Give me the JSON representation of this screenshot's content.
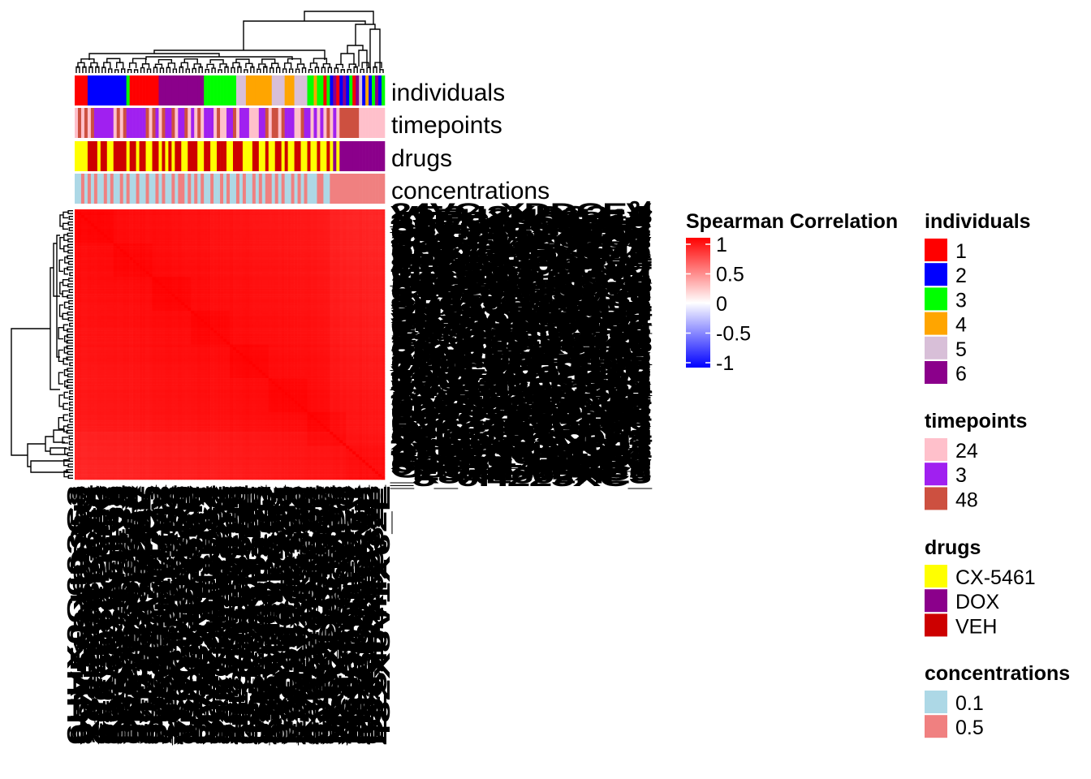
{
  "chart_data": {
    "type": "heatmap",
    "title": "",
    "value_name": "Spearman Correlation",
    "color_scale": {
      "breaks": [
        -1,
        -0.5,
        0,
        0.5,
        1
      ],
      "labels": [
        "1",
        "0.5",
        "0",
        "-0.5",
        "-1"
      ],
      "colors": {
        "low": "#0000ff",
        "mid": "#ffffff",
        "high": "#ff0000"
      }
    },
    "value_range_displayed": [
      0.85,
      1.0
    ],
    "n_samples": 96,
    "row_labels_visible": false,
    "column_labels_visible": false,
    "annotations": [
      {
        "name": "individuals",
        "levels": [
          {
            "label": "1",
            "color": "#ff0000"
          },
          {
            "label": "2",
            "color": "#0000ff"
          },
          {
            "label": "3",
            "color": "#00ff00"
          },
          {
            "label": "4",
            "color": "#ffa500"
          },
          {
            "label": "5",
            "color": "#d8bfd8"
          },
          {
            "label": "6",
            "color": "#8b008b"
          }
        ]
      },
      {
        "name": "timepoints",
        "levels": [
          {
            "label": "24",
            "color": "#ffc0cb"
          },
          {
            "label": "3",
            "color": "#a020f0"
          },
          {
            "label": "48",
            "color": "#cd5040"
          }
        ]
      },
      {
        "name": "drugs",
        "levels": [
          {
            "label": "CX-5461",
            "color": "#ffff00"
          },
          {
            "label": "DOX",
            "color": "#8b008b"
          },
          {
            "label": "VEH",
            "color": "#cd0000"
          }
        ]
      },
      {
        "name": "concentrations",
        "levels": [
          {
            "label": "0.1",
            "color": "#add8e6"
          },
          {
            "label": "0.5",
            "color": "#f08080"
          }
        ]
      }
    ],
    "column_order_annotations": {
      "individuals": [
        1,
        1,
        1,
        1,
        2,
        2,
        2,
        2,
        2,
        2,
        2,
        2,
        2,
        2,
        2,
        2,
        3,
        1,
        1,
        1,
        1,
        1,
        1,
        1,
        1,
        1,
        6,
        6,
        6,
        6,
        6,
        6,
        6,
        6,
        6,
        6,
        6,
        6,
        6,
        6,
        3,
        3,
        3,
        3,
        3,
        3,
        3,
        3,
        3,
        3,
        5,
        5,
        5,
        4,
        4,
        4,
        4,
        4,
        4,
        4,
        4,
        5,
        5,
        5,
        5,
        4,
        4,
        4,
        5,
        5,
        5,
        5,
        3,
        3,
        4,
        3,
        3,
        1,
        3,
        2,
        6,
        1,
        2,
        6,
        2,
        3,
        1,
        6,
        5,
        2,
        4,
        2,
        3,
        6,
        2,
        3
      ],
      "timepoints": [
        1,
        3,
        1,
        3,
        1,
        3,
        2,
        2,
        2,
        2,
        2,
        2,
        1,
        3,
        1,
        3,
        2,
        2,
        2,
        2,
        2,
        2,
        3,
        1,
        3,
        2,
        1,
        3,
        2,
        2,
        3,
        1,
        2,
        2,
        3,
        1,
        2,
        1,
        3,
        1,
        2,
        2,
        2,
        1,
        3,
        1,
        1,
        2,
        2,
        3,
        1,
        2,
        2,
        2,
        1,
        1,
        1,
        2,
        2,
        3,
        1,
        3,
        3,
        1,
        3,
        2,
        2,
        2,
        1,
        1,
        3,
        2,
        2,
        1,
        2,
        1,
        2,
        1,
        3,
        1,
        2,
        1,
        3,
        3,
        3,
        3,
        3,
        3,
        1,
        1,
        1,
        1,
        1,
        1,
        1,
        1
      ],
      "drugs": [
        1,
        1,
        1,
        1,
        3,
        3,
        3,
        1,
        3,
        3,
        1,
        1,
        3,
        3,
        3,
        3,
        1,
        3,
        3,
        1,
        3,
        3,
        1,
        1,
        3,
        3,
        1,
        3,
        1,
        3,
        1,
        3,
        3,
        1,
        1,
        3,
        3,
        3,
        1,
        1,
        3,
        3,
        1,
        1,
        3,
        3,
        3,
        1,
        1,
        3,
        3,
        3,
        1,
        1,
        1,
        3,
        3,
        1,
        1,
        3,
        1,
        1,
        3,
        3,
        1,
        3,
        1,
        1,
        3,
        3,
        1,
        1,
        3,
        1,
        1,
        3,
        1,
        1,
        3,
        1,
        2,
        1,
        2,
        2,
        2,
        2,
        2,
        2,
        2,
        2,
        2,
        2,
        2,
        2,
        2,
        2
      ],
      "concentrations": [
        1,
        1,
        2,
        1,
        2,
        1,
        2,
        1,
        1,
        2,
        1,
        2,
        1,
        1,
        2,
        1,
        2,
        1,
        1,
        2,
        1,
        1,
        2,
        1,
        1,
        2,
        1,
        2,
        1,
        1,
        2,
        1,
        2,
        2,
        1,
        2,
        1,
        2,
        1,
        2,
        1,
        1,
        2,
        1,
        1,
        2,
        1,
        2,
        1,
        1,
        2,
        1,
        2,
        1,
        1,
        2,
        1,
        2,
        1,
        2,
        2,
        1,
        2,
        1,
        2,
        1,
        1,
        2,
        1,
        2,
        1,
        2,
        1,
        1,
        1,
        2,
        2,
        1,
        1,
        2,
        2,
        2,
        2,
        2,
        2,
        2,
        2,
        2,
        2,
        2,
        2,
        2,
        2,
        2,
        2,
        2
      ]
    }
  }
}
